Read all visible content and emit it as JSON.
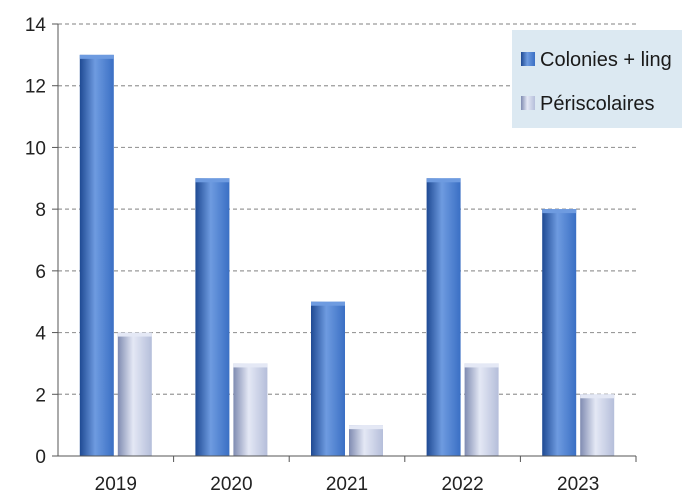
{
  "chart_data": {
    "type": "bar",
    "categories": [
      "2019",
      "2020",
      "2021",
      "2022",
      "2023"
    ],
    "series": [
      {
        "name": "Colonies + ling",
        "values": [
          13,
          9,
          5,
          9,
          8
        ]
      },
      {
        "name": "Périscolaires",
        "values": [
          4,
          3,
          1,
          3,
          2
        ]
      }
    ],
    "ylim": [
      0,
      14
    ],
    "yticks": [
      0,
      2,
      4,
      6,
      8,
      10,
      12,
      14
    ],
    "grid": true,
    "legend_position": "top-right",
    "colors": {
      "series_1": "#3A6FC4",
      "series_1_dark": "#1F4A93",
      "series_1_light": "#6E9BE0",
      "series_2": "#B5BEDA",
      "series_2_dark": "#7F8BB1",
      "series_2_light": "#E4E8F5",
      "legend_bg": "#DCE9F2",
      "grid": "#9A9A9A"
    }
  }
}
